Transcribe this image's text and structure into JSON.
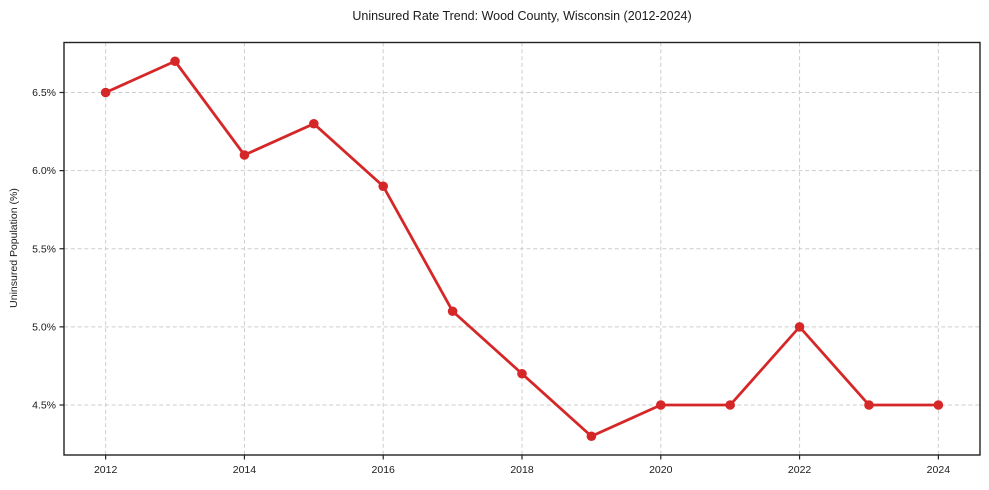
{
  "chart_data": {
    "type": "line",
    "title": "Uninsured Rate Trend: Wood County, Wisconsin (2012-2024)",
    "xlabel": "",
    "ylabel": "Uninsured Population (%)",
    "x": [
      2012,
      2013,
      2014,
      2015,
      2016,
      2017,
      2018,
      2019,
      2020,
      2021,
      2022,
      2023,
      2024
    ],
    "values": [
      6.5,
      6.7,
      6.1,
      6.3,
      5.9,
      5.1,
      4.7,
      4.3,
      4.5,
      4.5,
      5.0,
      4.5,
      4.5
    ],
    "xlim": [
      2011.4,
      2024.6
    ],
    "ylim": [
      4.18,
      6.82
    ],
    "xticks": [
      2012,
      2014,
      2016,
      2018,
      2020,
      2022,
      2024
    ],
    "xtick_labels": [
      "2012",
      "2014",
      "2016",
      "2018",
      "2020",
      "2022",
      "2024"
    ],
    "yticks": [
      4.5,
      5.0,
      5.5,
      6.0,
      6.5
    ],
    "ytick_labels": [
      "4.5%",
      "5.0%",
      "5.5%",
      "6.0%",
      "6.5%"
    ],
    "grid": true,
    "grid_style": "dashed",
    "legend": false,
    "line_color": "#d62728",
    "marker": "circle",
    "grid_color": "#cdcdcd",
    "frame_color": "#222222",
    "text_color": "#1a1a1a",
    "background": "#ffffff"
  }
}
